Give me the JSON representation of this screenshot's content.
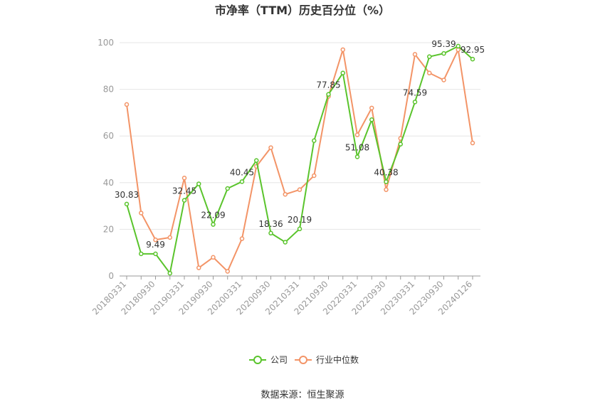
{
  "chart_data": {
    "type": "line",
    "title": "市净率（TTM）历史百分位（%）",
    "source": "数据来源：恒生聚源",
    "ylim": [
      0,
      100
    ],
    "yticks": [
      0,
      20,
      40,
      60,
      80,
      100
    ],
    "grid": true,
    "legend_position": "bottom",
    "x": [
      "20180331",
      "20180630",
      "20180930",
      "20181231",
      "20190331",
      "20190630",
      "20190930",
      "20191231",
      "20200331",
      "20200630",
      "20200930",
      "20201231",
      "20210331",
      "20210630",
      "20210930",
      "20211231",
      "20220331",
      "20220630",
      "20220930",
      "20221231",
      "20230331",
      "20230630",
      "20230930",
      "20231231",
      "20240126"
    ],
    "xtick_labels": [
      "20180331",
      "20180930",
      "20190331",
      "20190930",
      "20200331",
      "20200930",
      "20210331",
      "20210930",
      "20220331",
      "20220930",
      "20230331",
      "20230930",
      "20240126"
    ],
    "series": [
      {
        "name": "公司",
        "color": "#5ac42c",
        "values": [
          30.83,
          9.5,
          9.49,
          1.2,
          32.45,
          39.5,
          22.09,
          37.5,
          40.45,
          49.5,
          18.36,
          14.5,
          20.19,
          58,
          77.85,
          87,
          51.08,
          67,
          40.38,
          56.5,
          74.59,
          94,
          95.39,
          98.5,
          92.95
        ],
        "labels": [
          "30.83",
          null,
          "9.49",
          null,
          "32.45",
          null,
          "22.09",
          null,
          "40.45",
          null,
          "18.36",
          null,
          "20.19",
          null,
          "77.85",
          null,
          "51.08",
          null,
          "40.38",
          null,
          "74.59",
          null,
          "95.39",
          null,
          "92.95"
        ]
      },
      {
        "name": "行业中位数",
        "color": "#f39467",
        "values": [
          73.5,
          27,
          15.5,
          16.5,
          42,
          3.5,
          8,
          2,
          16,
          47,
          55,
          35,
          37,
          43,
          77,
          97,
          60.5,
          72,
          37,
          59,
          95,
          87,
          84,
          97,
          57
        ]
      }
    ]
  }
}
